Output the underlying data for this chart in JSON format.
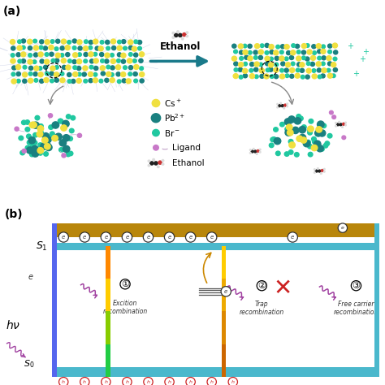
{
  "bg_color": "#ffffff",
  "panel_a_label": "(a)",
  "panel_b_label": "(b)",
  "cs_color": "#f0e040",
  "pb_color": "#1a8080",
  "br_color": "#20c8a0",
  "ligand_color": "#c878c8",
  "arrow_color": "#1a7a8a",
  "ethanol_label": "Ethanol",
  "s1_label": "S_1",
  "s0_label": "S_0",
  "top_bar_color": "#b8860b",
  "s1_bar_color": "#4ab8cc",
  "s0_bar_color": "#4ab8cc",
  "left_vbar_color": "#5566ee",
  "col1_colors": [
    "#22cc44",
    "#88cc00",
    "#ffcc00",
    "#ff8800"
  ],
  "col2_colors": [
    "#cc6600",
    "#dd8800",
    "#eeaa00",
    "#ffcc00"
  ],
  "col3_color": "#4ab8cc",
  "electron_color": "#333333",
  "hole_color": "#cc2222",
  "x_mark_color": "#cc2222",
  "wave_color": "#a040a0",
  "dashed_color": "#888888"
}
